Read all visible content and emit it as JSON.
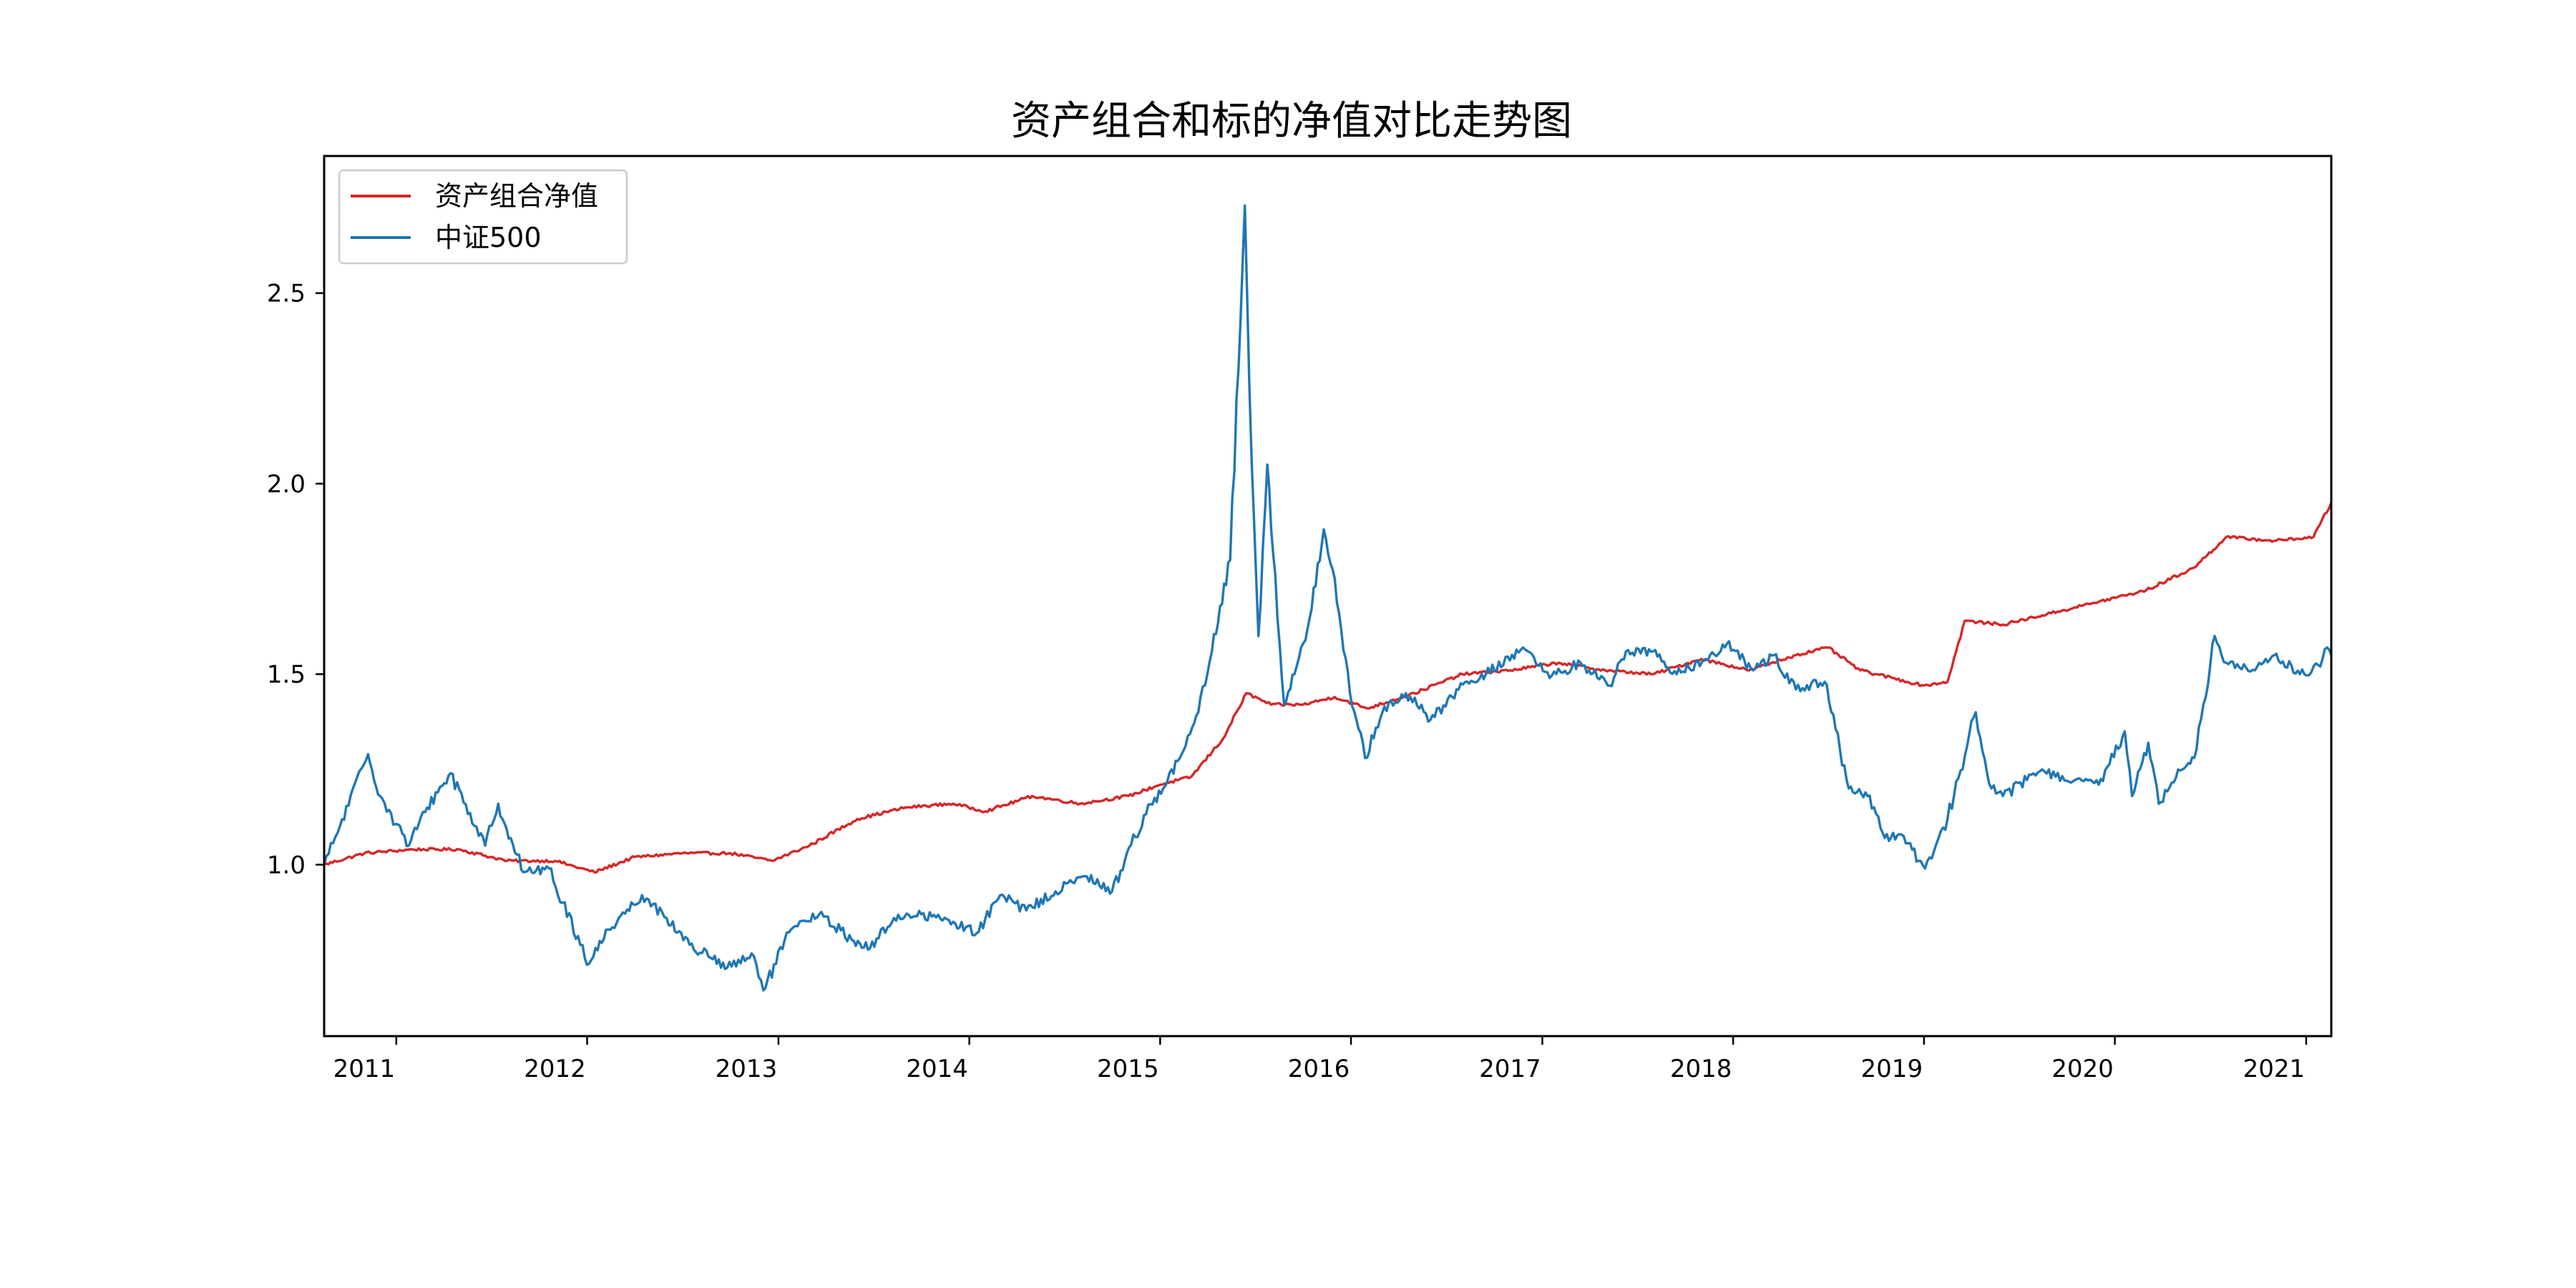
{
  "chart_data": {
    "type": "line",
    "title": "资产组合和标的净值对比走势图",
    "xlabel": "",
    "ylabel": "",
    "x_axis": "date",
    "xlim": [
      "2010-08-16",
      "2021-02-18"
    ],
    "ylim": [
      0.55,
      2.86
    ],
    "x_ticks": [
      "2011",
      "2012",
      "2013",
      "2014",
      "2015",
      "2016",
      "2017",
      "2018",
      "2019",
      "2020",
      "2021"
    ],
    "y_ticks": [
      "1.0",
      "1.5",
      "2.0",
      "2.5"
    ],
    "y_tick_values": [
      1.0,
      1.5,
      2.0,
      2.5
    ],
    "grid": false,
    "legend_position": "top-left",
    "series": [
      {
        "name": "资产组合净值",
        "color": "#d62728",
        "x": [
          "2010-08-16",
          "2010-11-01",
          "2011-02-01",
          "2011-05-01",
          "2011-08-01",
          "2011-11-01",
          "2012-01-15",
          "2012-04-01",
          "2012-07-01",
          "2012-10-01",
          "2012-12-20",
          "2013-03-01",
          "2013-06-01",
          "2013-09-01",
          "2013-12-01",
          "2014-02-01",
          "2014-05-01",
          "2014-08-01",
          "2014-11-01",
          "2015-01-01",
          "2015-03-01",
          "2015-05-01",
          "2015-06-15",
          "2015-08-01",
          "2015-10-01",
          "2015-12-01",
          "2016-02-01",
          "2016-05-01",
          "2016-08-01",
          "2016-11-01",
          "2017-02-01",
          "2017-05-01",
          "2017-08-01",
          "2017-11-01",
          "2018-02-01",
          "2018-05-01",
          "2018-07-01",
          "2018-09-01",
          "2018-11-01",
          "2019-01-01",
          "2019-02-15",
          "2019-03-20",
          "2019-06-01",
          "2019-09-01",
          "2019-12-01",
          "2020-03-01",
          "2020-06-01",
          "2020-08-01",
          "2020-11-01",
          "2021-01-15",
          "2021-02-18"
        ],
        "values": [
          1.0,
          1.03,
          1.04,
          1.04,
          1.01,
          1.01,
          0.98,
          1.02,
          1.03,
          1.03,
          1.01,
          1.05,
          1.12,
          1.15,
          1.16,
          1.14,
          1.18,
          1.16,
          1.18,
          1.21,
          1.23,
          1.33,
          1.45,
          1.42,
          1.42,
          1.44,
          1.41,
          1.45,
          1.5,
          1.51,
          1.53,
          1.51,
          1.5,
          1.54,
          1.51,
          1.55,
          1.57,
          1.51,
          1.49,
          1.47,
          1.48,
          1.64,
          1.63,
          1.66,
          1.69,
          1.72,
          1.78,
          1.86,
          1.85,
          1.86,
          1.95
        ]
      },
      {
        "name": "中证500",
        "color": "#1f77b4",
        "x": [
          "2010-08-16",
          "2010-09-15",
          "2010-11-08",
          "2010-12-01",
          "2011-01-25",
          "2011-03-01",
          "2011-04-15",
          "2011-06-20",
          "2011-07-15",
          "2011-09-01",
          "2011-10-20",
          "2011-11-15",
          "2012-01-05",
          "2012-02-10",
          "2012-04-15",
          "2012-06-01",
          "2012-07-15",
          "2012-09-25",
          "2012-11-15",
          "2012-12-03",
          "2013-01-25",
          "2013-03-20",
          "2013-05-25",
          "2013-06-25",
          "2013-08-10",
          "2013-10-01",
          "2013-12-01",
          "2014-01-15",
          "2014-03-01",
          "2014-04-20",
          "2014-06-15",
          "2014-08-10",
          "2014-10-01",
          "2014-12-01",
          "2015-01-15",
          "2015-02-15",
          "2015-03-15",
          "2015-04-10",
          "2015-05-15",
          "2015-06-12",
          "2015-06-25",
          "2015-07-08",
          "2015-07-25",
          "2015-08-05",
          "2015-08-26",
          "2015-09-15",
          "2015-10-10",
          "2015-11-10",
          "2015-12-01",
          "2015-12-30",
          "2016-01-28",
          "2016-03-01",
          "2016-04-15",
          "2016-06-01",
          "2016-07-25",
          "2016-09-15",
          "2016-11-25",
          "2017-01-15",
          "2017-03-15",
          "2017-05-10",
          "2017-06-10",
          "2017-08-01",
          "2017-09-15",
          "2017-11-10",
          "2017-12-20",
          "2018-02-08",
          "2018-03-20",
          "2018-05-01",
          "2018-06-25",
          "2018-08-10",
          "2018-09-15",
          "2018-10-18",
          "2018-11-15",
          "2019-01-03",
          "2019-02-15",
          "2019-04-10",
          "2019-05-10",
          "2019-06-01",
          "2019-08-15",
          "2019-10-01",
          "2019-12-01",
          "2020-01-20",
          "2020-02-03",
          "2020-03-05",
          "2020-03-25",
          "2020-05-01",
          "2020-06-01",
          "2020-07-10",
          "2020-08-01",
          "2020-09-25",
          "2020-11-01",
          "2020-12-20",
          "2021-01-28",
          "2021-02-10",
          "2021-02-18"
        ],
        "values": [
          1.0,
          1.1,
          1.29,
          1.18,
          1.05,
          1.15,
          1.24,
          1.05,
          1.16,
          0.98,
          0.99,
          0.9,
          0.74,
          0.83,
          0.92,
          0.86,
          0.79,
          0.73,
          0.76,
          0.67,
          0.83,
          0.87,
          0.8,
          0.78,
          0.86,
          0.87,
          0.85,
          0.82,
          0.92,
          0.88,
          0.93,
          0.97,
          0.93,
          1.13,
          1.22,
          1.3,
          1.4,
          1.56,
          1.8,
          2.73,
          2.06,
          1.6,
          2.05,
          1.82,
          1.42,
          1.5,
          1.62,
          1.88,
          1.75,
          1.45,
          1.28,
          1.4,
          1.45,
          1.38,
          1.46,
          1.5,
          1.57,
          1.49,
          1.53,
          1.47,
          1.56,
          1.56,
          1.5,
          1.54,
          1.58,
          1.51,
          1.55,
          1.46,
          1.48,
          1.2,
          1.18,
          1.07,
          1.08,
          0.99,
          1.12,
          1.4,
          1.2,
          1.18,
          1.25,
          1.22,
          1.21,
          1.35,
          1.18,
          1.32,
          1.16,
          1.25,
          1.28,
          1.6,
          1.53,
          1.51,
          1.55,
          1.5,
          1.52,
          1.57,
          1.55
        ]
      }
    ]
  }
}
